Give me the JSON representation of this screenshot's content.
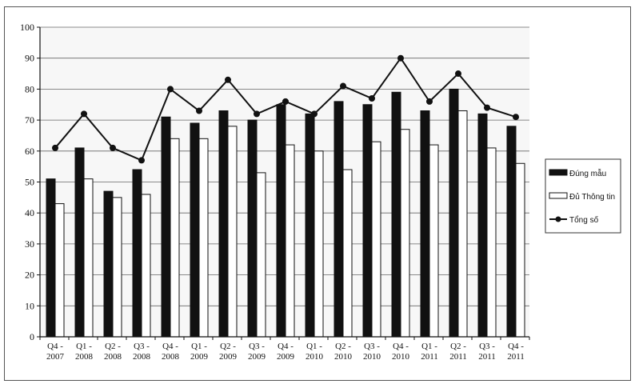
{
  "chart_data": {
    "type": "bar",
    "categories": [
      "Q4 - 2007",
      "Q1 - 2008",
      "Q2 - 2008",
      "Q3 - 2008",
      "Q4 - 2008",
      "Q1 - 2009",
      "Q2 - 2009",
      "Q3 - 2009",
      "Q4 - 2009",
      "Q1 - 2010",
      "Q2 - 2010",
      "Q3 - 2010",
      "Q4 - 2010",
      "Q1 - 2011",
      "Q2 - 2011",
      "Q3 - 2011",
      "Q4 - 2011"
    ],
    "category_lines": [
      [
        "Q4 -",
        "2007"
      ],
      [
        "Q1 -",
        "2008"
      ],
      [
        "Q2 -",
        "2008"
      ],
      [
        "Q3 -",
        "2008"
      ],
      [
        "Q4 -",
        "2008"
      ],
      [
        "Q1 -",
        "2009"
      ],
      [
        "Q2 -",
        "2009"
      ],
      [
        "Q3 -",
        "2009"
      ],
      [
        "Q4 -",
        "2009"
      ],
      [
        "Q1 -",
        "2010"
      ],
      [
        "Q2 -",
        "2010"
      ],
      [
        "Q3 -",
        "2010"
      ],
      [
        "Q4 -",
        "2010"
      ],
      [
        "Q1 -",
        "2011"
      ],
      [
        "Q2 -",
        "2011"
      ],
      [
        "Q3 -",
        "2011"
      ],
      [
        "Q4 -",
        "2011"
      ]
    ],
    "series": [
      {
        "name": "Đúng mẫu",
        "kind": "bar",
        "color": "#111111",
        "values": [
          51,
          61,
          47,
          54,
          71,
          69,
          73,
          70,
          75,
          72,
          76,
          75,
          79,
          73,
          80,
          72,
          68
        ]
      },
      {
        "name": "Đủ Thông tin",
        "kind": "bar",
        "color": "#ffffff",
        "values": [
          43,
          51,
          45,
          46,
          64,
          64,
          68,
          53,
          62,
          60,
          54,
          63,
          67,
          62,
          73,
          61,
          56
        ]
      },
      {
        "name": "Tổng số",
        "kind": "line",
        "color": "#111111",
        "values": [
          61,
          72,
          61,
          57,
          80,
          73,
          83,
          72,
          76,
          72,
          81,
          77,
          90,
          76,
          85,
          74,
          71
        ]
      }
    ],
    "ylim": [
      0,
      100
    ],
    "yticks": [
      0,
      10,
      20,
      30,
      40,
      50,
      60,
      70,
      80,
      90,
      100
    ],
    "grid": true,
    "legend_position": "right",
    "title": "",
    "xlabel": "",
    "ylabel": ""
  }
}
